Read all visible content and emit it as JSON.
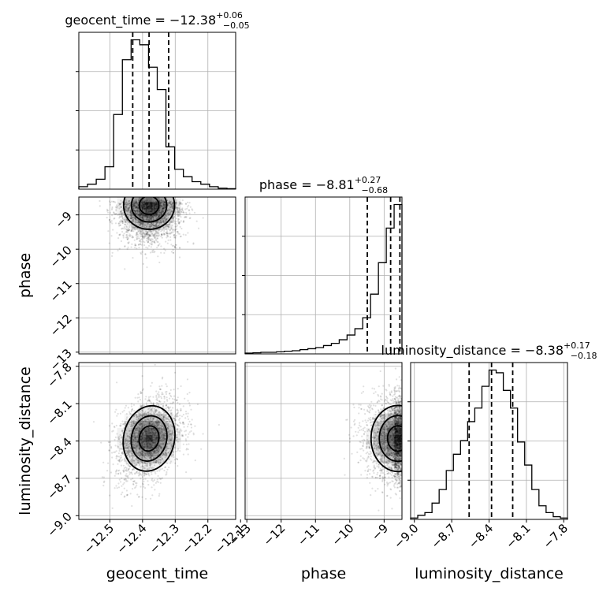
{
  "chart_data": {
    "type": "corner",
    "parameters": [
      {
        "name": "geocent_time",
        "axis_label": "geocent_time",
        "title_prefix": "geocent_time = ",
        "median": "−12.38",
        "plus": "+0.06",
        "minus": "−0.05",
        "range": [
          -12.595,
          -12.115
        ],
        "ticks": [
          -12.5,
          -12.4,
          -12.3,
          -12.2,
          -12.1
        ],
        "tick_labels": [
          "−12.5",
          "−12.4",
          "−12.3",
          "−12.2",
          "−12.1"
        ],
        "quantiles": [
          -12.43,
          -12.38,
          -12.32
        ],
        "hist_values": [
          1,
          2,
          4,
          9,
          30,
          52,
          60,
          58,
          49,
          40,
          17,
          8,
          5,
          3,
          2,
          1,
          0.4,
          0.2
        ]
      },
      {
        "name": "phase",
        "axis_label": "phase",
        "title_prefix": "phase = ",
        "median": "−8.81",
        "plus": "+0.27",
        "minus": "−0.68",
        "range": [
          -13.05,
          -8.48
        ],
        "ticks": [
          -13,
          -12,
          -11,
          -10,
          -9
        ],
        "tick_labels": [
          "−13",
          "−12",
          "−11",
          "−10",
          "−9"
        ],
        "quantiles": [
          -9.49,
          -8.81,
          -8.54
        ],
        "hist_values": [
          0.5,
          0.7,
          1,
          1,
          1.3,
          1.7,
          2,
          2.7,
          3.3,
          4,
          5.3,
          6.7,
          9,
          12,
          16,
          23,
          38,
          58,
          80,
          95
        ]
      },
      {
        "name": "luminosity_distance",
        "axis_label": "luminosity_distance",
        "title_prefix": "luminosity_distance = ",
        "median": "−8.38",
        "plus": "+0.17",
        "minus": "−0.18",
        "range": [
          -9.03,
          -7.77
        ],
        "ticks": [
          -9.0,
          -8.7,
          -8.4,
          -8.1,
          -7.8
        ],
        "tick_labels": [
          "−9.0",
          "−8.7",
          "−8.4",
          "−8.1",
          "−7.8"
        ],
        "quantiles": [
          -8.56,
          -8.38,
          -8.21
        ],
        "hist_values": [
          1,
          3,
          5,
          12,
          22,
          36,
          48,
          58,
          72,
          82,
          98,
          110,
          108,
          95,
          82,
          57,
          40,
          22,
          10,
          5,
          2,
          1
        ]
      }
    ],
    "pairs": [
      {
        "x": 0,
        "y": 1,
        "center": [
          -12.38,
          -8.72
        ],
        "spread": [
          0.05,
          0.45
        ],
        "rho": 0.0
      },
      {
        "x": 0,
        "y": 2,
        "center": [
          -12.38,
          -8.38
        ],
        "spread": [
          0.05,
          0.17
        ],
        "rho": 0.35
      },
      {
        "x": 1,
        "y": 2,
        "center": [
          -8.6,
          -8.38
        ],
        "spread": [
          0.5,
          0.17
        ],
        "rho": 0.0
      }
    ],
    "grid": true,
    "colors": {
      "samples": "#000000",
      "hist": "#000000",
      "quantile_lines": "#000000",
      "grid": "#b0b0b0"
    }
  }
}
